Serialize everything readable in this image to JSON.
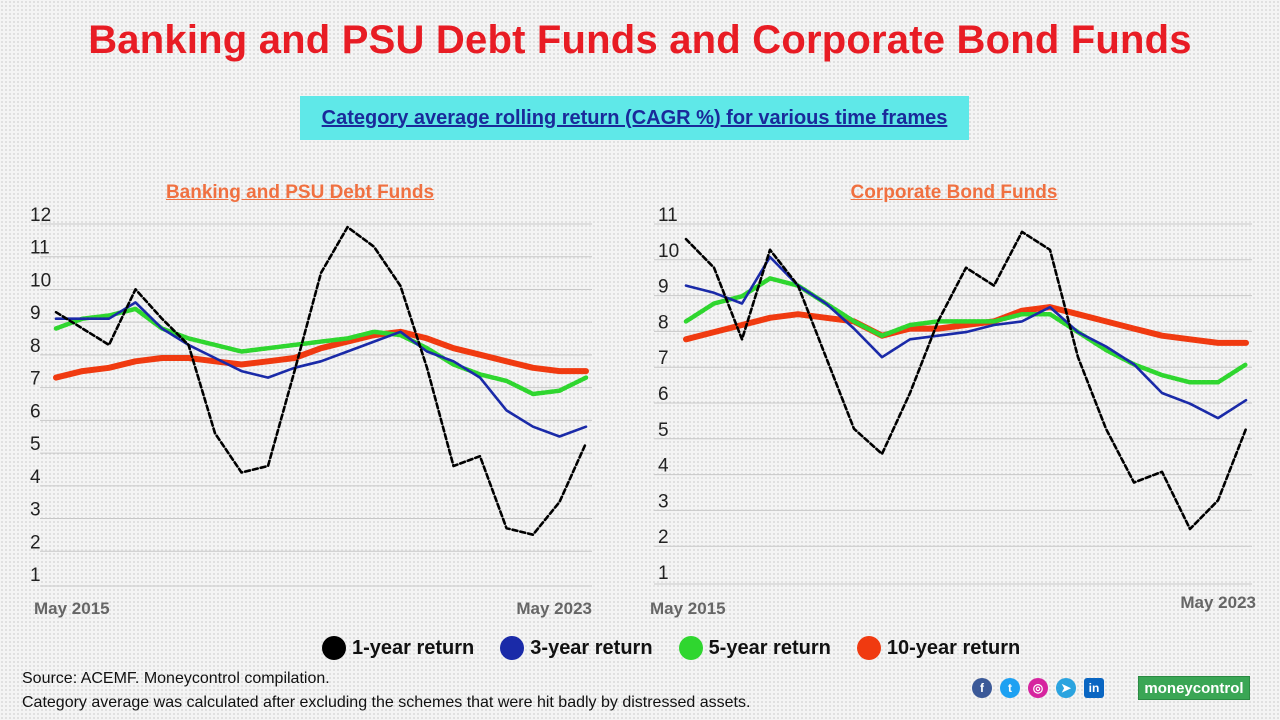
{
  "title": "Banking and PSU Debt Funds and Corporate Bond Funds",
  "subtitle": "Category average rolling return (CAGR %) for various time frames",
  "legend": [
    {
      "label": "1-year return",
      "color": "#000000"
    },
    {
      "label": "3-year return",
      "color": "#1a2aa8"
    },
    {
      "label": "5-year return",
      "color": "#2fd62f"
    },
    {
      "label": "10-year return",
      "color": "#f03a10"
    }
  ],
  "footer": {
    "source": "Source: ACEMF. Moneycontrol compilation.",
    "note": "Category average was calculated after excluding the schemes that were hit badly by distressed assets."
  },
  "social_icons": [
    "facebook-icon",
    "twitter-icon",
    "instagram-icon",
    "telegram-icon",
    "linkedin-icon"
  ],
  "brand": "moneycontrol",
  "chart_data": [
    {
      "type": "line",
      "title": "Banking and PSU Debt Funds",
      "x_start_label": "May 2015",
      "x_end_label": "May 2023",
      "yticks": [
        1,
        2,
        3,
        4,
        5,
        6,
        7,
        8,
        9,
        10,
        11,
        12
      ],
      "ylim": [
        1,
        12
      ],
      "x": [
        2015.4,
        2015.8,
        2016.2,
        2016.6,
        2017.0,
        2017.4,
        2017.8,
        2018.2,
        2018.6,
        2019.0,
        2019.4,
        2019.8,
        2020.2,
        2020.6,
        2021.0,
        2021.4,
        2021.8,
        2022.2,
        2022.6,
        2023.0,
        2023.4
      ],
      "series": [
        {
          "name": "1-year return",
          "values": [
            9.0,
            8.5,
            8.0,
            9.7,
            8.8,
            8.0,
            5.3,
            4.1,
            4.3,
            7.2,
            10.2,
            11.6,
            11.0,
            9.8,
            7.3,
            4.3,
            4.6,
            2.4,
            2.2,
            3.2,
            5.0
          ]
        },
        {
          "name": "3-year return",
          "values": [
            8.8,
            8.8,
            8.8,
            9.3,
            8.5,
            8.0,
            7.6,
            7.2,
            7.0,
            7.3,
            7.5,
            7.8,
            8.1,
            8.4,
            7.8,
            7.5,
            7.0,
            6.0,
            5.5,
            5.2,
            5.5
          ]
        },
        {
          "name": "5-year return",
          "values": [
            8.5,
            8.8,
            8.9,
            9.1,
            8.5,
            8.2,
            8.0,
            7.8,
            7.9,
            8.0,
            8.1,
            8.2,
            8.4,
            8.3,
            7.9,
            7.4,
            7.1,
            6.9,
            6.5,
            6.6,
            7.0
          ]
        },
        {
          "name": "10-year return",
          "values": [
            7.0,
            7.2,
            7.3,
            7.5,
            7.6,
            7.6,
            7.5,
            7.4,
            7.5,
            7.6,
            7.9,
            8.1,
            8.3,
            8.4,
            8.2,
            7.9,
            7.7,
            7.5,
            7.3,
            7.2,
            7.2
          ]
        }
      ]
    },
    {
      "type": "line",
      "title": "Corporate Bond Funds",
      "x_start_label": "May 2015",
      "x_end_label": "May 2023",
      "yticks": [
        1,
        2,
        3,
        4,
        5,
        6,
        7,
        8,
        9,
        10,
        11
      ],
      "ylim": [
        1,
        11
      ],
      "x": [
        2015.4,
        2015.8,
        2016.2,
        2016.6,
        2017.0,
        2017.4,
        2017.8,
        2018.2,
        2018.6,
        2019.0,
        2019.4,
        2019.8,
        2020.2,
        2020.6,
        2021.0,
        2021.4,
        2021.8,
        2022.2,
        2022.6,
        2023.0,
        2023.4
      ],
      "series": [
        {
          "name": "1-year return",
          "values": [
            10.3,
            9.5,
            7.5,
            10.0,
            9.0,
            7.0,
            5.0,
            4.3,
            6.0,
            8.0,
            9.5,
            9.0,
            10.5,
            10.0,
            7.0,
            5.0,
            3.5,
            3.8,
            2.2,
            3.0,
            5.0
          ]
        },
        {
          "name": "3-year return",
          "values": [
            9.0,
            8.8,
            8.5,
            9.8,
            9.0,
            8.5,
            7.8,
            7.0,
            7.5,
            7.6,
            7.7,
            7.9,
            8.0,
            8.4,
            7.7,
            7.3,
            6.8,
            6.0,
            5.7,
            5.3,
            5.8
          ]
        },
        {
          "name": "5-year return",
          "values": [
            8.0,
            8.5,
            8.7,
            9.2,
            9.0,
            8.5,
            8.0,
            7.6,
            7.9,
            8.0,
            8.0,
            8.0,
            8.2,
            8.2,
            7.7,
            7.2,
            6.8,
            6.5,
            6.3,
            6.3,
            6.8
          ]
        },
        {
          "name": "10-year return",
          "values": [
            7.5,
            7.7,
            7.9,
            8.1,
            8.2,
            8.1,
            8.0,
            7.6,
            7.8,
            7.8,
            7.9,
            8.0,
            8.3,
            8.4,
            8.2,
            8.0,
            7.8,
            7.6,
            7.5,
            7.4,
            7.4
          ]
        }
      ]
    }
  ]
}
